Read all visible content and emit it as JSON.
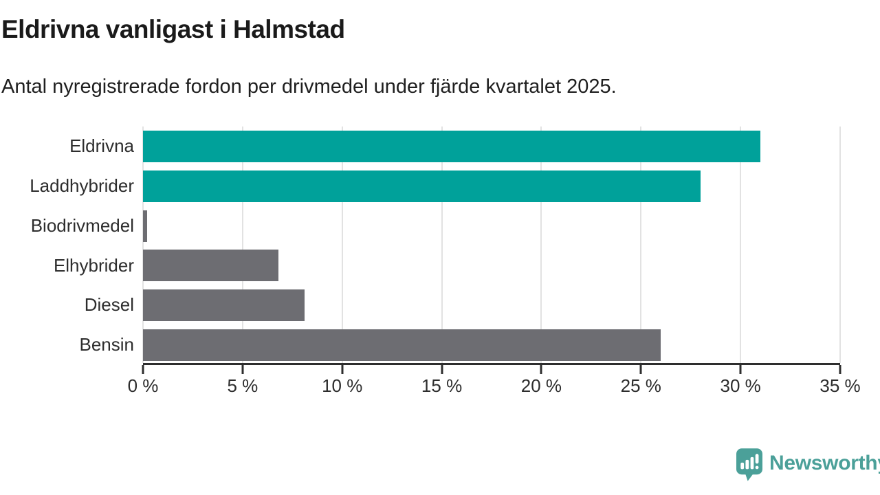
{
  "header": {
    "title": "Eldrivna vanligast i Halmstad",
    "subtitle": "Antal nyregistrerade fordon per drivmedel under fjärde kvartalet 2025."
  },
  "chart_data": {
    "type": "bar",
    "orientation": "horizontal",
    "title": "Eldrivna vanligast i Halmstad",
    "subtitle": "Antal nyregistrerade fordon per drivmedel under fjärde kvartalet 2025.",
    "categories": [
      "Eldrivna",
      "Laddhybrider",
      "Biodrivmedel",
      "Elhybrider",
      "Diesel",
      "Bensin"
    ],
    "values": [
      31,
      28,
      0.2,
      6.8,
      8.1,
      26
    ],
    "unit": "%",
    "xlim": [
      0,
      35
    ],
    "x_ticks": [
      "0 %",
      "5 %",
      "10 %",
      "15 %",
      "20 %",
      "25 %",
      "30 %",
      "35 %"
    ],
    "grid": true,
    "legend": false,
    "bar_colors": [
      "#00a19a",
      "#00a19a",
      "#6d6d72",
      "#6d6d72",
      "#6d6d72",
      "#6d6d72"
    ],
    "highlight_color": "#00a19a",
    "default_color": "#6d6d72",
    "gridline_color": "#e2e2e2",
    "axis_color": "#2e2e2e"
  },
  "footer": {
    "brand": "Newsworthy",
    "brand_color": "#4ba099"
  }
}
